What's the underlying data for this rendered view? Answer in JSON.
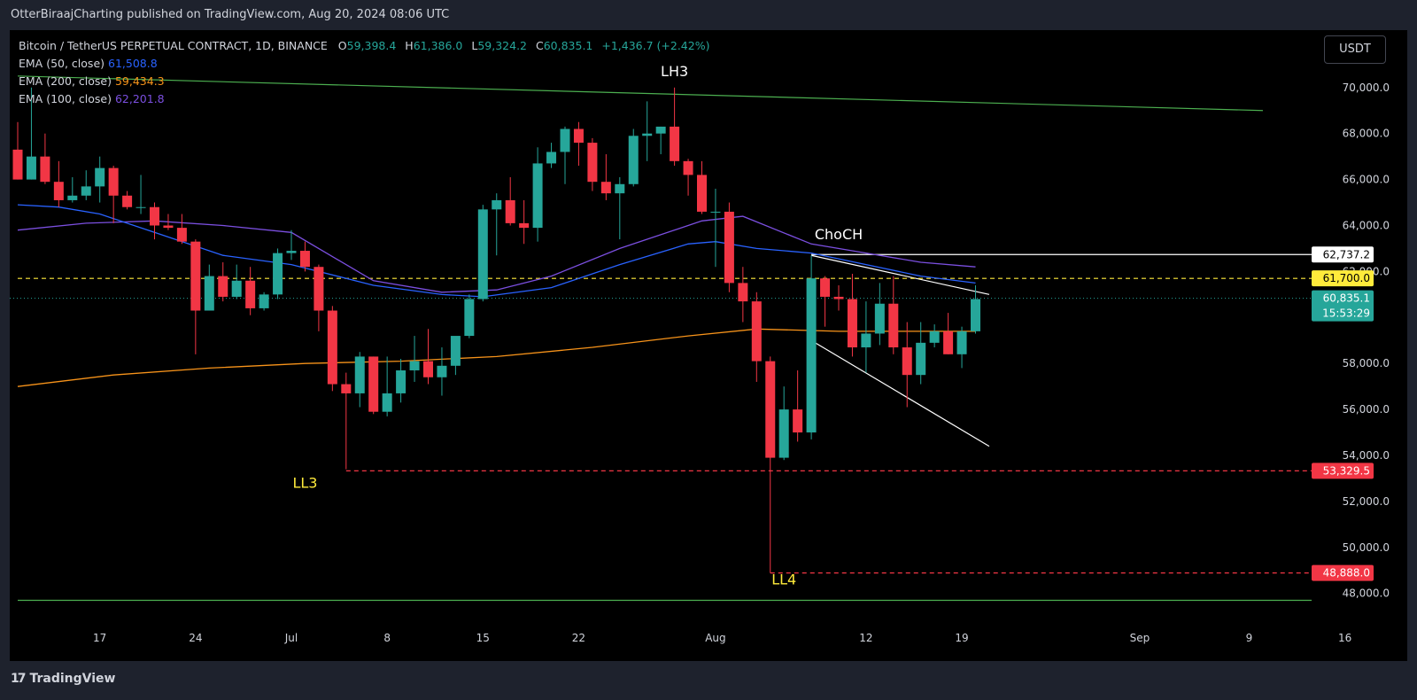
{
  "header": {
    "text": "OtterBiraajCharting published on TradingView.com, Aug 20, 2024 08:06 UTC"
  },
  "footer": {
    "logo_text": "TradingView"
  },
  "legend": {
    "symbol": "Bitcoin / TetherUS PERPETUAL CONTRACT, 1D, BINANCE",
    "o_label": "O",
    "o": "59,398.4",
    "h_label": "H",
    "h": "61,386.0",
    "l_label": "L",
    "l": "59,324.2",
    "c_label": "C",
    "c": "60,835.1",
    "change": "+1,436.7 (+2.42%)",
    "ema50_label": "EMA (50, close)",
    "ema50": "61,508.8",
    "ema200_label": "EMA (200, close)",
    "ema200": "59,434.3",
    "ema100_label": "EMA (100, close)",
    "ema100": "62,201.8"
  },
  "currency_button": "USDT",
  "colors": {
    "up": "#26a69a",
    "down": "#f23645",
    "ema50": "#2962ff",
    "ema200": "#f7931a",
    "ema100": "#7b4fe0",
    "trend_green": "#4caf50",
    "label_yellow": "#ffeb3b",
    "axis_text": "#d1d4dc",
    "background": "#000000"
  },
  "chart_data": {
    "type": "candlestick",
    "x_tick_labels": [
      "17",
      "24",
      "Jul",
      "8",
      "15",
      "22",
      "Aug",
      "12",
      "19",
      "Sep",
      "9",
      "16"
    ],
    "y_tick_labels": [
      "48,000.0",
      "50,000.0",
      "52,000.0",
      "54,000.0",
      "56,000.0",
      "58,000.0",
      "62,000.0",
      "64,000.0",
      "66,000.0",
      "68,000.0",
      "70,000.0"
    ],
    "y_ticks": [
      48000,
      50000,
      52000,
      54000,
      56000,
      58000,
      62000,
      64000,
      66000,
      68000,
      70000
    ],
    "candles": [
      {
        "date": "2024-06-11",
        "o": 67300,
        "h": 68500,
        "l": 66000,
        "c": 66000
      },
      {
        "date": "2024-06-12",
        "o": 66000,
        "h": 70000,
        "l": 66000,
        "c": 67000
      },
      {
        "date": "2024-06-13",
        "o": 67000,
        "h": 68000,
        "l": 65800,
        "c": 65900
      },
      {
        "date": "2024-06-14",
        "o": 65900,
        "h": 66800,
        "l": 64800,
        "c": 65100
      },
      {
        "date": "2024-06-15",
        "o": 65100,
        "h": 66100,
        "l": 65000,
        "c": 65300
      },
      {
        "date": "2024-06-16",
        "o": 65300,
        "h": 66400,
        "l": 65100,
        "c": 65700
      },
      {
        "date": "2024-06-17",
        "o": 65700,
        "h": 67000,
        "l": 65000,
        "c": 66500
      },
      {
        "date": "2024-06-18",
        "o": 66500,
        "h": 66600,
        "l": 64100,
        "c": 65300
      },
      {
        "date": "2024-06-19",
        "o": 65300,
        "h": 65500,
        "l": 64700,
        "c": 64800
      },
      {
        "date": "2024-06-20",
        "o": 64800,
        "h": 66200,
        "l": 64500,
        "c": 64800
      },
      {
        "date": "2024-06-21",
        "o": 64800,
        "h": 65000,
        "l": 63400,
        "c": 64000
      },
      {
        "date": "2024-06-22",
        "o": 64000,
        "h": 64500,
        "l": 63800,
        "c": 63900
      },
      {
        "date": "2024-06-23",
        "o": 63900,
        "h": 64500,
        "l": 63200,
        "c": 63300
      },
      {
        "date": "2024-06-24",
        "o": 63300,
        "h": 63400,
        "l": 58400,
        "c": 60300
      },
      {
        "date": "2024-06-25",
        "o": 60300,
        "h": 62300,
        "l": 60300,
        "c": 61800
      },
      {
        "date": "2024-06-26",
        "o": 61800,
        "h": 62400,
        "l": 60700,
        "c": 60900
      },
      {
        "date": "2024-06-27",
        "o": 60900,
        "h": 62300,
        "l": 60800,
        "c": 61600
      },
      {
        "date": "2024-06-28",
        "o": 61600,
        "h": 62200,
        "l": 60100,
        "c": 60400
      },
      {
        "date": "2024-06-29",
        "o": 60400,
        "h": 61100,
        "l": 60300,
        "c": 61000
      },
      {
        "date": "2024-06-30",
        "o": 61000,
        "h": 63000,
        "l": 60800,
        "c": 62800
      },
      {
        "date": "2024-07-01",
        "o": 62800,
        "h": 63800,
        "l": 62500,
        "c": 62900
      },
      {
        "date": "2024-07-02",
        "o": 62900,
        "h": 63300,
        "l": 62000,
        "c": 62200
      },
      {
        "date": "2024-07-03",
        "o": 62200,
        "h": 62300,
        "l": 59400,
        "c": 60300
      },
      {
        "date": "2024-07-04",
        "o": 60300,
        "h": 60500,
        "l": 56800,
        "c": 57100
      },
      {
        "date": "2024-07-05",
        "o": 57100,
        "h": 57600,
        "l": 53400,
        "c": 56700
      },
      {
        "date": "2024-07-06",
        "o": 56700,
        "h": 58500,
        "l": 56100,
        "c": 58300
      },
      {
        "date": "2024-07-07",
        "o": 58300,
        "h": 58300,
        "l": 55800,
        "c": 55900
      },
      {
        "date": "2024-07-08",
        "o": 55900,
        "h": 58300,
        "l": 55700,
        "c": 56700
      },
      {
        "date": "2024-07-09",
        "o": 56700,
        "h": 58200,
        "l": 56300,
        "c": 57700
      },
      {
        "date": "2024-07-10",
        "o": 57700,
        "h": 59200,
        "l": 57200,
        "c": 58100
      },
      {
        "date": "2024-07-11",
        "o": 58100,
        "h": 59500,
        "l": 57100,
        "c": 57400
      },
      {
        "date": "2024-07-12",
        "o": 57400,
        "h": 58700,
        "l": 56600,
        "c": 57900
      },
      {
        "date": "2024-07-13",
        "o": 57900,
        "h": 59000,
        "l": 57500,
        "c": 59200
      },
      {
        "date": "2024-07-14",
        "o": 59200,
        "h": 61000,
        "l": 59100,
        "c": 60800
      },
      {
        "date": "2024-07-15",
        "o": 60800,
        "h": 64900,
        "l": 60700,
        "c": 64700
      },
      {
        "date": "2024-07-16",
        "o": 64700,
        "h": 65400,
        "l": 62700,
        "c": 65100
      },
      {
        "date": "2024-07-17",
        "o": 65100,
        "h": 66100,
        "l": 64000,
        "c": 64100
      },
      {
        "date": "2024-07-18",
        "o": 64100,
        "h": 65100,
        "l": 63200,
        "c": 63900
      },
      {
        "date": "2024-07-19",
        "o": 63900,
        "h": 67400,
        "l": 63300,
        "c": 66700
      },
      {
        "date": "2024-07-20",
        "o": 66700,
        "h": 67600,
        "l": 66500,
        "c": 67200
      },
      {
        "date": "2024-07-21",
        "o": 67200,
        "h": 68300,
        "l": 65800,
        "c": 68200
      },
      {
        "date": "2024-07-22",
        "o": 68200,
        "h": 68500,
        "l": 66600,
        "c": 67600
      },
      {
        "date": "2024-07-23",
        "o": 67600,
        "h": 67800,
        "l": 65500,
        "c": 65900
      },
      {
        "date": "2024-07-24",
        "o": 65900,
        "h": 67100,
        "l": 65100,
        "c": 65400
      },
      {
        "date": "2024-07-25",
        "o": 65400,
        "h": 66100,
        "l": 63400,
        "c": 65800
      },
      {
        "date": "2024-07-26",
        "o": 65800,
        "h": 68200,
        "l": 65700,
        "c": 67900
      },
      {
        "date": "2024-07-27",
        "o": 67900,
        "h": 69400,
        "l": 66800,
        "c": 68000
      },
      {
        "date": "2024-07-28",
        "o": 68000,
        "h": 68300,
        "l": 67100,
        "c": 68300
      },
      {
        "date": "2024-07-29",
        "o": 68300,
        "h": 70000,
        "l": 66600,
        "c": 66800
      },
      {
        "date": "2024-07-30",
        "o": 66800,
        "h": 66900,
        "l": 65300,
        "c": 66200
      },
      {
        "date": "2024-07-31",
        "o": 66200,
        "h": 66800,
        "l": 64500,
        "c": 64600
      },
      {
        "date": "2024-08-01",
        "o": 64600,
        "h": 65600,
        "l": 62200,
        "c": 64600
      },
      {
        "date": "2024-08-02",
        "o": 64600,
        "h": 65000,
        "l": 61100,
        "c": 61500
      },
      {
        "date": "2024-08-03",
        "o": 61500,
        "h": 62200,
        "l": 59800,
        "c": 60700
      },
      {
        "date": "2024-08-04",
        "o": 60700,
        "h": 61100,
        "l": 57200,
        "c": 58100
      },
      {
        "date": "2024-08-05",
        "o": 58100,
        "h": 58300,
        "l": 48888,
        "c": 53900
      },
      {
        "date": "2024-08-06",
        "o": 53900,
        "h": 57000,
        "l": 53800,
        "c": 56000
      },
      {
        "date": "2024-08-07",
        "o": 56000,
        "h": 57700,
        "l": 54600,
        "c": 55000
      },
      {
        "date": "2024-08-08",
        "o": 55000,
        "h": 62700,
        "l": 54700,
        "c": 61700
      },
      {
        "date": "2024-08-09",
        "o": 61700,
        "h": 61800,
        "l": 59600,
        "c": 60900
      },
      {
        "date": "2024-08-10",
        "o": 60900,
        "h": 61400,
        "l": 60300,
        "c": 60800
      },
      {
        "date": "2024-08-11",
        "o": 60800,
        "h": 61900,
        "l": 58300,
        "c": 58700
      },
      {
        "date": "2024-08-12",
        "o": 58700,
        "h": 60700,
        "l": 57600,
        "c": 59300
      },
      {
        "date": "2024-08-13",
        "o": 59300,
        "h": 61500,
        "l": 58800,
        "c": 60600
      },
      {
        "date": "2024-08-14",
        "o": 60600,
        "h": 61800,
        "l": 58400,
        "c": 58700
      },
      {
        "date": "2024-08-15",
        "o": 58700,
        "h": 59800,
        "l": 56100,
        "c": 57500
      },
      {
        "date": "2024-08-16",
        "o": 57500,
        "h": 59800,
        "l": 57100,
        "c": 58900
      },
      {
        "date": "2024-08-17",
        "o": 58900,
        "h": 59700,
        "l": 58700,
        "c": 59400
      },
      {
        "date": "2024-08-18",
        "o": 59400,
        "h": 60200,
        "l": 58400,
        "c": 58400
      },
      {
        "date": "2024-08-19",
        "o": 58400,
        "h": 59600,
        "l": 57800,
        "c": 59400
      },
      {
        "date": "2024-08-20",
        "o": 59400,
        "h": 61400,
        "l": 59300,
        "c": 60800
      }
    ],
    "ema50": [
      {
        "date": "2024-06-11",
        "v": 64900
      },
      {
        "date": "2024-06-14",
        "v": 64800
      },
      {
        "date": "2024-06-17",
        "v": 64500
      },
      {
        "date": "2024-06-21",
        "v": 63700
      },
      {
        "date": "2024-06-26",
        "v": 62700
      },
      {
        "date": "2024-07-01",
        "v": 62300
      },
      {
        "date": "2024-07-07",
        "v": 61400
      },
      {
        "date": "2024-07-12",
        "v": 61000
      },
      {
        "date": "2024-07-15",
        "v": 60900
      },
      {
        "date": "2024-07-20",
        "v": 61300
      },
      {
        "date": "2024-07-25",
        "v": 62300
      },
      {
        "date": "2024-07-30",
        "v": 63200
      },
      {
        "date": "2024-08-01",
        "v": 63300
      },
      {
        "date": "2024-08-04",
        "v": 63000
      },
      {
        "date": "2024-08-08",
        "v": 62800
      },
      {
        "date": "2024-08-12",
        "v": 62300
      },
      {
        "date": "2024-08-16",
        "v": 61800
      },
      {
        "date": "2024-08-20",
        "v": 61500
      }
    ],
    "ema100": [
      {
        "date": "2024-06-11",
        "v": 63800
      },
      {
        "date": "2024-06-16",
        "v": 64100
      },
      {
        "date": "2024-06-21",
        "v": 64200
      },
      {
        "date": "2024-06-26",
        "v": 64000
      },
      {
        "date": "2024-07-01",
        "v": 63700
      },
      {
        "date": "2024-07-07",
        "v": 61600
      },
      {
        "date": "2024-07-12",
        "v": 61100
      },
      {
        "date": "2024-07-16",
        "v": 61200
      },
      {
        "date": "2024-07-20",
        "v": 61800
      },
      {
        "date": "2024-07-25",
        "v": 63000
      },
      {
        "date": "2024-07-31",
        "v": 64200
      },
      {
        "date": "2024-08-03",
        "v": 64400
      },
      {
        "date": "2024-08-08",
        "v": 63200
      },
      {
        "date": "2024-08-12",
        "v": 62800
      },
      {
        "date": "2024-08-16",
        "v": 62400
      },
      {
        "date": "2024-08-20",
        "v": 62200
      }
    ],
    "ema200": [
      {
        "date": "2024-06-11",
        "v": 57000
      },
      {
        "date": "2024-06-18",
        "v": 57500
      },
      {
        "date": "2024-06-25",
        "v": 57800
      },
      {
        "date": "2024-07-02",
        "v": 58000
      },
      {
        "date": "2024-07-09",
        "v": 58100
      },
      {
        "date": "2024-07-16",
        "v": 58300
      },
      {
        "date": "2024-07-23",
        "v": 58700
      },
      {
        "date": "2024-07-30",
        "v": 59200
      },
      {
        "date": "2024-08-04",
        "v": 59500
      },
      {
        "date": "2024-08-10",
        "v": 59400
      },
      {
        "date": "2024-08-15",
        "v": 59400
      },
      {
        "date": "2024-08-20",
        "v": 59400
      }
    ],
    "price_lines": [
      {
        "label": "62,737.2",
        "value": 62737.2,
        "style": "solid",
        "color": "#ffffff",
        "from": "2024-08-08",
        "tag_bg": "#ffffff",
        "tag_color": "#000000"
      },
      {
        "label": "61,700.0",
        "value": 61700,
        "style": "dashed",
        "color": "#ffeb3b",
        "from": "2024-06-11",
        "tag_bg": "#ffeb3b",
        "tag_color": "#000000"
      },
      {
        "label": "53,329.5",
        "value": 53329.5,
        "style": "dashed",
        "color": "#f23645",
        "from": "2024-07-05",
        "tag_bg": "#f23645",
        "tag_color": "#ffffff"
      },
      {
        "label": "48,888.0",
        "value": 48888,
        "style": "dashed",
        "color": "#f23645",
        "from": "2024-08-05",
        "tag_bg": "#f23645",
        "tag_color": "#ffffff"
      }
    ],
    "current_price": {
      "label": "60,835.1",
      "value": 60835.1,
      "countdown": "15:53:29"
    },
    "trend_lines": [
      {
        "from": [
          "2024-06-11",
          70500
        ],
        "to": [
          "2024-09-10",
          69000
        ],
        "color": "#4caf50"
      },
      {
        "from": [
          "2024-06-11",
          47700
        ],
        "to": [
          "2024-09-30",
          47700
        ],
        "color": "#4caf50"
      },
      {
        "from": [
          "2024-08-08",
          62700
        ],
        "to": [
          "2024-08-21",
          61000
        ],
        "color": "#ffffff"
      },
      {
        "from": [
          "2024-08-08",
          59000
        ],
        "to": [
          "2024-08-21",
          54400
        ],
        "color": "#ffffff"
      }
    ],
    "annotations": [
      {
        "text": "LH3",
        "date": "2024-07-29",
        "value": 70500,
        "color": "#ffffff"
      },
      {
        "text": "ChoCH",
        "date": "2024-08-10",
        "value": 63400,
        "color": "#ffffff"
      },
      {
        "text": "LL3",
        "date": "2024-07-02",
        "value": 52600,
        "color": "#ffeb3b"
      },
      {
        "text": "LL4",
        "date": "2024-08-06",
        "value": 48400,
        "color": "#ffeb3b"
      }
    ]
  }
}
